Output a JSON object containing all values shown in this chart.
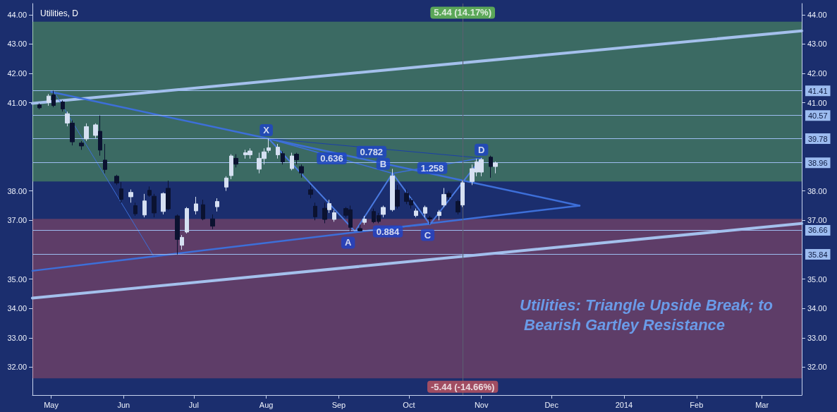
{
  "chart_data": {
    "type": "candlestick",
    "title": "Utilities, D",
    "x": [
      "2013-04-26",
      "2013-04-30",
      "2013-05-02",
      "2013-05-06",
      "2013-05-08",
      "2013-05-10",
      "2013-05-14",
      "2013-05-16",
      "2013-05-20",
      "2013-05-22",
      "2013-05-24",
      "2013-05-29",
      "2013-05-31",
      "2013-06-04",
      "2013-06-06",
      "2013-06-10",
      "2013-06-12",
      "2013-06-14",
      "2013-06-18",
      "2013-06-20",
      "2013-06-24",
      "2013-06-26",
      "2013-06-28",
      "2013-07-02",
      "2013-07-05",
      "2013-07-09",
      "2013-07-11",
      "2013-07-15",
      "2013-07-17",
      "2013-07-19",
      "2013-07-23",
      "2013-07-25",
      "2013-07-29",
      "2013-07-31",
      "2013-08-02",
      "2013-08-06",
      "2013-08-08",
      "2013-08-12",
      "2013-08-14",
      "2013-08-16",
      "2013-08-20",
      "2013-08-22",
      "2013-08-26",
      "2013-08-28",
      "2013-08-30",
      "2013-09-04",
      "2013-09-06",
      "2013-09-10",
      "2013-09-12",
      "2013-09-16",
      "2013-09-18",
      "2013-09-20",
      "2013-09-24",
      "2013-09-26",
      "2013-09-30",
      "2013-10-02",
      "2013-10-04",
      "2013-10-08",
      "2013-10-10",
      "2013-10-14",
      "2013-10-16",
      "2013-10-18",
      "2013-10-22",
      "2013-10-24",
      "2013-10-28",
      "2013-10-30",
      "2013-11-01",
      "2013-11-05",
      "2013-11-07"
    ],
    "ohlc": [
      [
        40.93,
        40.98,
        40.78,
        40.83
      ],
      [
        41.01,
        41.3,
        40.9,
        41.23
      ],
      [
        41.27,
        41.41,
        40.85,
        40.91
      ],
      [
        41.03,
        41.08,
        40.7,
        40.79
      ],
      [
        40.31,
        40.7,
        40.2,
        40.63
      ],
      [
        40.31,
        40.4,
        39.55,
        39.67
      ],
      [
        39.63,
        39.7,
        39.4,
        39.53
      ],
      [
        39.77,
        40.3,
        39.7,
        40.19
      ],
      [
        39.89,
        40.3,
        39.8,
        40.25
      ],
      [
        40.03,
        40.57,
        39.2,
        39.39
      ],
      [
        39.05,
        39.6,
        38.6,
        38.73
      ],
      [
        38.5,
        38.55,
        38.2,
        38.27
      ],
      [
        38.07,
        38.3,
        37.6,
        37.71
      ],
      [
        37.8,
        38.05,
        37.6,
        37.95
      ],
      [
        37.5,
        37.6,
        37.15,
        37.22
      ],
      [
        37.18,
        37.9,
        37.1,
        37.66
      ],
      [
        38.02,
        38.15,
        37.8,
        37.85
      ],
      [
        37.82,
        37.9,
        37.1,
        37.25
      ],
      [
        37.3,
        37.95,
        37.2,
        37.91
      ],
      [
        38.09,
        38.35,
        37.35,
        37.39
      ],
      [
        37.15,
        37.2,
        35.84,
        36.35
      ],
      [
        36.15,
        36.5,
        36.0,
        36.42
      ],
      [
        36.6,
        37.45,
        36.55,
        37.4
      ],
      [
        37.32,
        37.8,
        37.2,
        37.56
      ],
      [
        37.53,
        37.7,
        37.0,
        37.05
      ],
      [
        37.05,
        37.2,
        36.7,
        36.8
      ],
      [
        37.46,
        37.75,
        37.3,
        37.64
      ],
      [
        38.13,
        38.5,
        38.0,
        38.44
      ],
      [
        38.52,
        39.25,
        38.4,
        39.19
      ],
      [
        39.11,
        39.25,
        38.8,
        38.91
      ],
      [
        39.23,
        39.4,
        39.1,
        39.3
      ],
      [
        39.23,
        39.45,
        39.1,
        39.36
      ],
      [
        38.74,
        39.3,
        38.6,
        39.11
      ],
      [
        39.1,
        39.45,
        38.9,
        39.33
      ],
      [
        39.38,
        39.78,
        39.3,
        39.47
      ],
      [
        39.23,
        39.6,
        39.1,
        39.49
      ],
      [
        39.27,
        39.35,
        38.9,
        38.99
      ],
      [
        38.76,
        39.3,
        38.7,
        39.19
      ],
      [
        39.25,
        39.3,
        38.9,
        39.06
      ],
      [
        38.83,
        38.9,
        38.45,
        38.61
      ],
      [
        38.04,
        38.2,
        37.75,
        37.88
      ],
      [
        37.48,
        37.6,
        37.0,
        37.12
      ],
      [
        37.41,
        37.6,
        36.9,
        37.03
      ],
      [
        37.36,
        37.7,
        37.25,
        37.57
      ],
      [
        37.03,
        37.35,
        36.95,
        37.26
      ],
      [
        37.4,
        37.45,
        37.1,
        37.17
      ],
      [
        37.36,
        37.5,
        36.62,
        36.76
      ],
      [
        36.72,
        36.85,
        36.62,
        36.64
      ],
      [
        36.93,
        37.15,
        36.85,
        37.04
      ],
      [
        37.3,
        37.4,
        36.9,
        36.95
      ],
      [
        37.16,
        37.25,
        36.9,
        36.96
      ],
      [
        37.2,
        37.5,
        37.1,
        37.44
      ],
      [
        37.36,
        38.75,
        37.3,
        38.51
      ],
      [
        38.03,
        38.2,
        37.4,
        37.48
      ],
      [
        37.92,
        38.05,
        37.55,
        37.64
      ],
      [
        37.68,
        37.75,
        37.4,
        37.52
      ],
      [
        37.16,
        37.4,
        37.1,
        37.32
      ],
      [
        37.24,
        37.5,
        37.1,
        37.44
      ],
      [
        37.08,
        37.15,
        36.86,
        37.05
      ],
      [
        37.16,
        37.35,
        37.0,
        37.28
      ],
      [
        37.52,
        38.1,
        37.45,
        37.88
      ],
      [
        37.92,
        38.0,
        37.7,
        37.8
      ],
      [
        37.64,
        37.7,
        37.2,
        37.28
      ],
      [
        37.52,
        38.35,
        37.45,
        38.28
      ],
      [
        38.32,
        38.9,
        38.2,
        38.76
      ],
      [
        38.64,
        39.1,
        38.5,
        38.99
      ],
      [
        38.64,
        39.12,
        38.5,
        39.07
      ],
      [
        39.15,
        39.2,
        38.45,
        38.83
      ],
      [
        38.83,
        39.0,
        38.6,
        38.95
      ]
    ],
    "series": [
      {
        "type": "line",
        "color": "#a4c0ec",
        "x": [
          "2013-04-23",
          "2014-03-18"
        ],
        "values": [
          40.98,
          43.45
        ]
      },
      {
        "type": "line",
        "color": "#a4c0ec",
        "x": [
          "2013-04-23",
          "2014-03-18"
        ],
        "values": [
          34.35,
          36.89
        ]
      },
      {
        "type": "line",
        "color": "#3d6fd9",
        "x": [
          "2013-05-01",
          "2013-12-13"
        ],
        "values": [
          41.37,
          37.5
        ]
      },
      {
        "type": "line",
        "color": "#3d6fd9",
        "x": [
          "2013-04-23",
          "2013-12-13"
        ],
        "values": [
          35.28,
          37.5
        ]
      },
      {
        "type": "line",
        "color": "#3d6fd9",
        "x": [
          "2013-05-02",
          "2013-06-14"
        ],
        "values": [
          41.41,
          35.76
        ]
      },
      {
        "type": "line",
        "color": "#4a7ae0",
        "x": [
          "2013-08-02",
          "2013-09-08",
          "2013-09-24",
          "2013-10-10",
          "2013-11-01"
        ],
        "values": [
          39.78,
          36.62,
          38.6,
          36.86,
          39.12
        ]
      },
      {
        "type": "line",
        "color": "#3d6fd9",
        "x": [
          "2013-08-02",
          "2013-09-24",
          "2013-11-01"
        ],
        "values": [
          39.78,
          38.6,
          39.12
        ]
      },
      {
        "type": "line",
        "color": "#1c3fa8",
        "x": [
          "2013-08-02",
          "2013-11-01"
        ],
        "values": [
          39.78,
          39.12
        ]
      },
      {
        "type": "line",
        "color": "#3d6fd9",
        "x": [
          "2013-09-08",
          "2013-10-10"
        ],
        "values": [
          36.62,
          36.86
        ]
      }
    ],
    "xlim": [
      "2013-04-23",
      "2014-03-18"
    ],
    "xticks": [
      {
        "value": "2013-05-01",
        "label": "May"
      },
      {
        "value": "2013-06-01",
        "label": "Jun"
      },
      {
        "value": "2013-07-01",
        "label": "Jul"
      },
      {
        "value": "2013-08-01",
        "label": "Aug"
      },
      {
        "value": "2013-09-01",
        "label": "Sep"
      },
      {
        "value": "2013-10-01",
        "label": "Oct"
      },
      {
        "value": "2013-11-01",
        "label": "Nov"
      },
      {
        "value": "2013-12-01",
        "label": "Dec"
      },
      {
        "value": "2014-01-01",
        "label": "2014"
      },
      {
        "value": "2014-02-01",
        "label": "Feb"
      },
      {
        "value": "2014-03-01",
        "label": "Mar"
      }
    ],
    "ylim": [
      31.05,
      44.38
    ],
    "yticks": [
      {
        "value": 32,
        "label": "32.00"
      },
      {
        "value": 33,
        "label": "33.00"
      },
      {
        "value": 34,
        "label": "34.00"
      },
      {
        "value": 35,
        "label": "35.00"
      },
      {
        "value": 37,
        "label": "37.00"
      },
      {
        "value": 38,
        "label": "38.00"
      },
      {
        "value": 41,
        "label": "41.00"
      },
      {
        "value": 42,
        "label": "42.00"
      },
      {
        "value": 43,
        "label": "43.00"
      },
      {
        "value": 44,
        "label": "44.00"
      }
    ],
    "y2lim": [
      31.05,
      44.38
    ],
    "y2ticks": [
      {
        "value": 32,
        "label": "32.00"
      },
      {
        "value": 33,
        "label": "33.00"
      },
      {
        "value": 34,
        "label": "34.00"
      },
      {
        "value": 35,
        "label": "35.00"
      },
      {
        "value": 37,
        "label": "37.00"
      },
      {
        "value": 38,
        "label": "38.00"
      },
      {
        "value": 41,
        "label": "41.00"
      },
      {
        "value": 42,
        "label": "42.00"
      },
      {
        "value": 43,
        "label": "43.00"
      },
      {
        "value": 44,
        "label": "44.00"
      }
    ],
    "ref_lines": [
      {
        "axis": "y",
        "value": 41.41,
        "label": "41.41",
        "color": "#9dbcf0"
      },
      {
        "axis": "y",
        "value": 40.57,
        "label": "40.57",
        "color": "#9dbcf0"
      },
      {
        "axis": "y",
        "value": 39.78,
        "label": "39.78",
        "color": "#9dbcf0"
      },
      {
        "axis": "y",
        "value": 38.96,
        "label": "38.96",
        "color": "#9dbcf0"
      },
      {
        "axis": "y",
        "value": 36.66,
        "label": "36.66",
        "color": "#9dbcf0"
      },
      {
        "axis": "y",
        "value": 35.84,
        "label": "35.84",
        "color": "#9dbcf0"
      },
      {
        "axis": "x",
        "value": "2013-10-24",
        "color": "#5a5f70"
      }
    ],
    "bands": [
      {
        "axis": "y",
        "from": 38.32,
        "to": 43.76,
        "color": "#6bc653"
      },
      {
        "axis": "y",
        "from": 31.62,
        "to": 37.05,
        "color": "#c3555f"
      }
    ],
    "annotations": [
      {
        "text": "5.44 (14.17%)",
        "x": "2013-10-24",
        "y": 44.07
      },
      {
        "text": "-5.44 (-14.66%)",
        "x": "2013-10-24",
        "y": 31.33
      },
      {
        "text": "X",
        "x": "2013-08-01",
        "y": 40.07
      },
      {
        "text": "A",
        "x": "2013-09-05",
        "y": 36.24
      },
      {
        "text": "B",
        "x": "2013-09-20",
        "y": 38.92
      },
      {
        "text": "C",
        "x": "2013-10-09",
        "y": 36.5
      },
      {
        "text": "D",
        "x": "2013-11-01",
        "y": 39.4
      },
      {
        "text": "0.636",
        "x": "2013-08-29",
        "y": 39.11
      },
      {
        "text": "0.782",
        "x": "2013-09-15",
        "y": 39.33
      },
      {
        "text": "1.258",
        "x": "2013-10-11",
        "y": 38.78
      },
      {
        "text": "0.884",
        "x": "2013-09-22",
        "y": 36.62
      },
      "Utilities: Triangle Upside Break; to Bearish Gartley Resistance"
    ],
    "marker": "none"
  }
}
